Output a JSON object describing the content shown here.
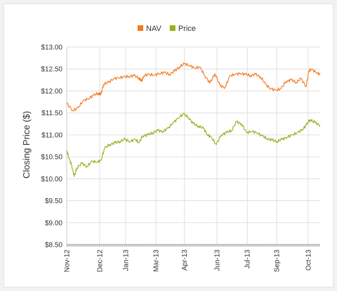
{
  "chart_data": {
    "type": "line",
    "ylabel": "Closing Price ($)",
    "xlabel": "",
    "ylim": [
      8.5,
      13.0
    ],
    "y_ticks": [
      "$13.00",
      "$12.50",
      "$12.00",
      "$11.50",
      "$11.00",
      "$10.50",
      "$10.00",
      "$9.50",
      "$9.00",
      "$8.50"
    ],
    "y_tick_values": [
      13.0,
      12.5,
      12.0,
      11.5,
      11.0,
      10.5,
      10.0,
      9.5,
      9.0,
      8.5
    ],
    "x_ticks": [
      "Nov-12",
      "Dec-12",
      "Jan-13",
      "Mar-13",
      "Apr-13",
      "Jun-13",
      "Jul-13",
      "Sep-13",
      "Oct-13"
    ],
    "x_tick_positions": [
      0,
      0.1301,
      0.2322,
      0.3523,
      0.4644,
      0.5925,
      0.7126,
      0.8287,
      0.9528
    ],
    "grid": true,
    "legend_position": "top-center",
    "series": [
      {
        "name": "NAV",
        "color": "#f47920",
        "x": [
          0.0,
          0.025,
          0.045,
          0.065,
          0.085,
          0.105,
          0.125,
          0.135,
          0.145,
          0.165,
          0.185,
          0.205,
          0.225,
          0.245,
          0.265,
          0.285,
          0.295,
          0.305,
          0.325,
          0.345,
          0.365,
          0.385,
          0.405,
          0.425,
          0.445,
          0.465,
          0.485,
          0.505,
          0.525,
          0.545,
          0.565,
          0.585,
          0.605,
          0.625,
          0.645,
          0.665,
          0.685,
          0.705,
          0.725,
          0.745,
          0.765,
          0.785,
          0.805,
          0.825,
          0.845,
          0.865,
          0.885,
          0.905,
          0.925,
          0.945,
          0.955,
          0.965,
          0.985,
          1.0
        ],
        "values": [
          11.72,
          11.55,
          11.62,
          11.78,
          11.82,
          11.9,
          11.95,
          11.92,
          12.15,
          12.2,
          12.28,
          12.3,
          12.32,
          12.33,
          12.35,
          12.3,
          12.22,
          12.35,
          12.38,
          12.36,
          12.4,
          12.42,
          12.38,
          12.45,
          12.55,
          12.62,
          12.58,
          12.52,
          12.55,
          12.35,
          12.18,
          12.4,
          12.12,
          12.08,
          12.35,
          12.38,
          12.4,
          12.38,
          12.35,
          12.38,
          12.32,
          12.15,
          12.05,
          12.02,
          12.05,
          12.22,
          12.25,
          12.2,
          12.28,
          12.1,
          12.45,
          12.5,
          12.42,
          12.38
        ]
      },
      {
        "name": "Price",
        "color": "#8fb21e",
        "x": [
          0.0,
          0.01,
          0.02,
          0.03,
          0.04,
          0.06,
          0.08,
          0.1,
          0.12,
          0.135,
          0.15,
          0.17,
          0.19,
          0.21,
          0.23,
          0.25,
          0.27,
          0.285,
          0.3,
          0.32,
          0.34,
          0.36,
          0.38,
          0.4,
          0.42,
          0.44,
          0.46,
          0.48,
          0.5,
          0.52,
          0.54,
          0.555,
          0.57,
          0.59,
          0.61,
          0.63,
          0.65,
          0.67,
          0.69,
          0.71,
          0.73,
          0.75,
          0.77,
          0.79,
          0.81,
          0.83,
          0.85,
          0.87,
          0.89,
          0.91,
          0.93,
          0.945,
          0.96,
          0.98,
          1.0
        ],
        "values": [
          10.65,
          10.45,
          10.3,
          10.05,
          10.25,
          10.35,
          10.28,
          10.4,
          10.38,
          10.42,
          10.7,
          10.78,
          10.82,
          10.85,
          10.9,
          10.85,
          10.9,
          10.82,
          10.98,
          11.0,
          11.05,
          11.1,
          11.08,
          11.15,
          11.28,
          11.38,
          11.48,
          11.4,
          11.25,
          11.2,
          11.15,
          11.0,
          10.95,
          10.78,
          11.0,
          11.05,
          11.1,
          11.3,
          11.25,
          11.05,
          11.08,
          11.05,
          10.98,
          10.92,
          10.88,
          10.85,
          10.9,
          10.95,
          11.0,
          11.05,
          11.12,
          11.22,
          11.35,
          11.28,
          11.22
        ]
      }
    ]
  }
}
